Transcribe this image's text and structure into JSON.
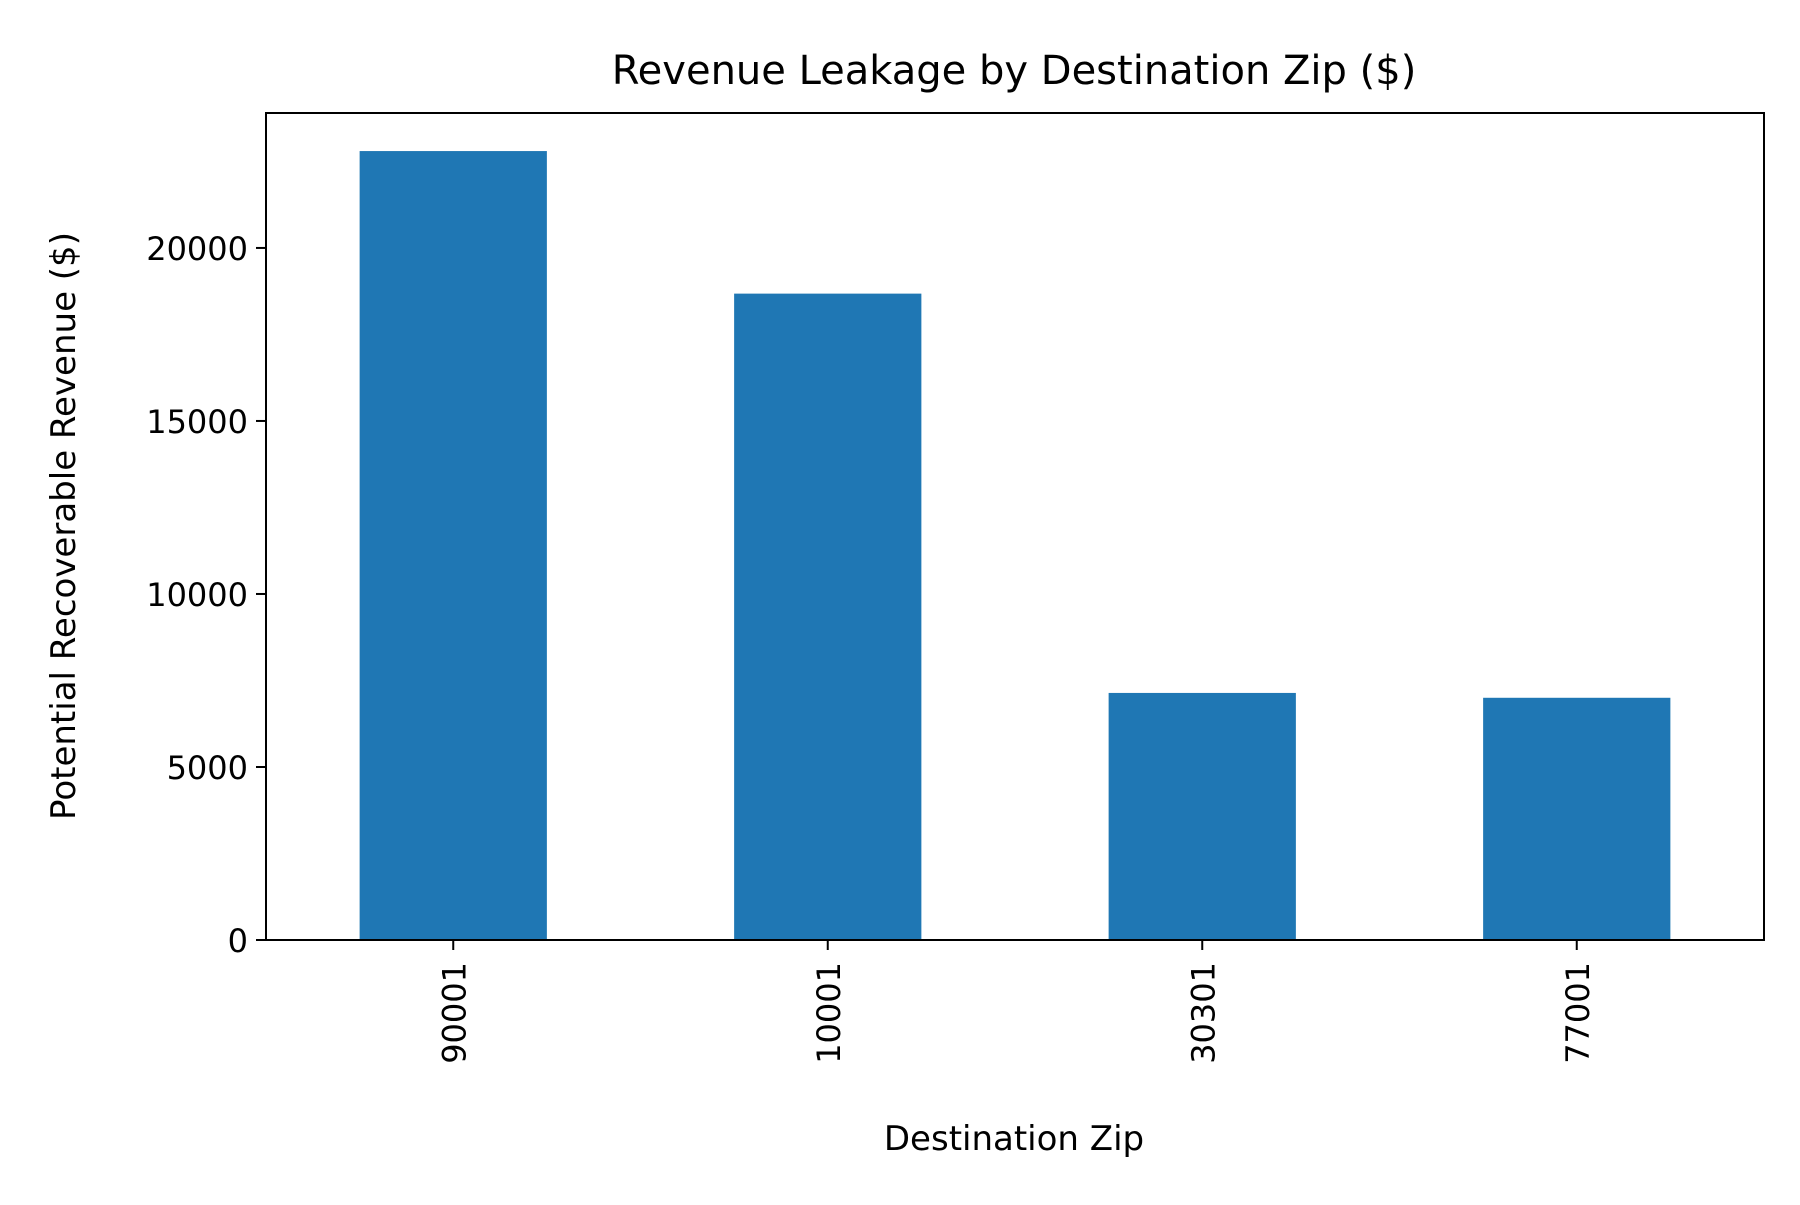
{
  "chart_data": {
    "type": "bar",
    "title": "Revenue Leakage by Destination Zip ($)",
    "xlabel": "Destination Zip",
    "ylabel": "Potential Recoverable Revenue ($)",
    "categories": [
      "90001",
      "10001",
      "30301",
      "77001"
    ],
    "values": [
      22800,
      18680,
      7140,
      7000
    ],
    "ylim": [
      0,
      23900
    ],
    "yticks": [
      0,
      5000,
      10000,
      15000,
      20000
    ],
    "ytick_labels": [
      "0",
      "5000",
      "10000",
      "15000",
      "20000"
    ],
    "bar_color": "#1f77b4",
    "grid": false,
    "legend": "none"
  }
}
